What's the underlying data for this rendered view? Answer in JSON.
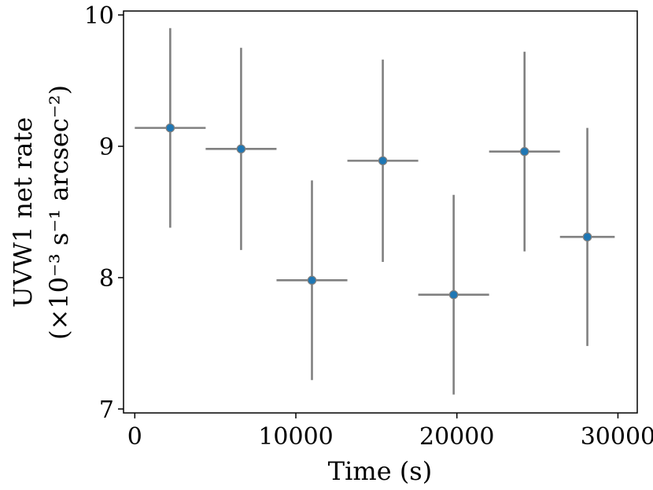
{
  "chart_data": {
    "type": "scatter",
    "xlabel": "Time (s)",
    "ylabel": "UVW1 net rate",
    "ylabel_units": "(×10⁻³ s⁻¹ arcsec⁻²)",
    "xlim": [
      -700,
      31200
    ],
    "ylim": [
      6.97,
      10.03
    ],
    "x_ticks": [
      0,
      10000,
      20000,
      30000
    ],
    "x_tick_labels": [
      "0",
      "10000",
      "20000",
      "30000"
    ],
    "y_ticks": [
      7,
      8,
      9,
      10
    ],
    "y_tick_labels": [
      "7",
      "8",
      "9",
      "10"
    ],
    "grid": false,
    "marker_color": "#1f77b4",
    "errorbar_color": "#808080",
    "points": [
      {
        "x": 2200,
        "y": 9.14,
        "xerr": 2200,
        "yerr_low": 0.76,
        "yerr_high": 0.76
      },
      {
        "x": 6600,
        "y": 8.98,
        "xerr": 2200,
        "yerr_low": 0.77,
        "yerr_high": 0.77
      },
      {
        "x": 11000,
        "y": 7.98,
        "xerr": 2200,
        "yerr_low": 0.76,
        "yerr_high": 0.76
      },
      {
        "x": 15400,
        "y": 8.89,
        "xerr": 2200,
        "yerr_low": 0.77,
        "yerr_high": 0.77
      },
      {
        "x": 19800,
        "y": 7.87,
        "xerr": 2200,
        "yerr_low": 0.76,
        "yerr_high": 0.76
      },
      {
        "x": 24200,
        "y": 8.96,
        "xerr": 2200,
        "yerr_low": 0.76,
        "yerr_high": 0.76
      },
      {
        "x": 28100,
        "y": 8.31,
        "xerr": 1700,
        "yerr_low": 0.83,
        "yerr_high": 0.83
      }
    ]
  }
}
